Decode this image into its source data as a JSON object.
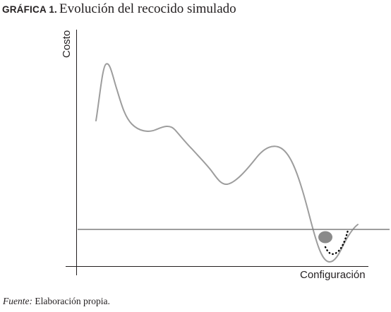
{
  "figure": {
    "label": "GRÁFICA 1.",
    "caption": "Evolución del recocido simulado"
  },
  "axes": {
    "y_label": "Costo",
    "x_label": "Configuración"
  },
  "source": {
    "label": "Fuente:",
    "text": "Elaboración propia."
  },
  "colors": {
    "curve": "#9d9d9d",
    "axis": "#231f20",
    "reference_line": "#7f7f7f",
    "state_marker": "#8a8a8a",
    "descent_path": "#000000"
  }
}
